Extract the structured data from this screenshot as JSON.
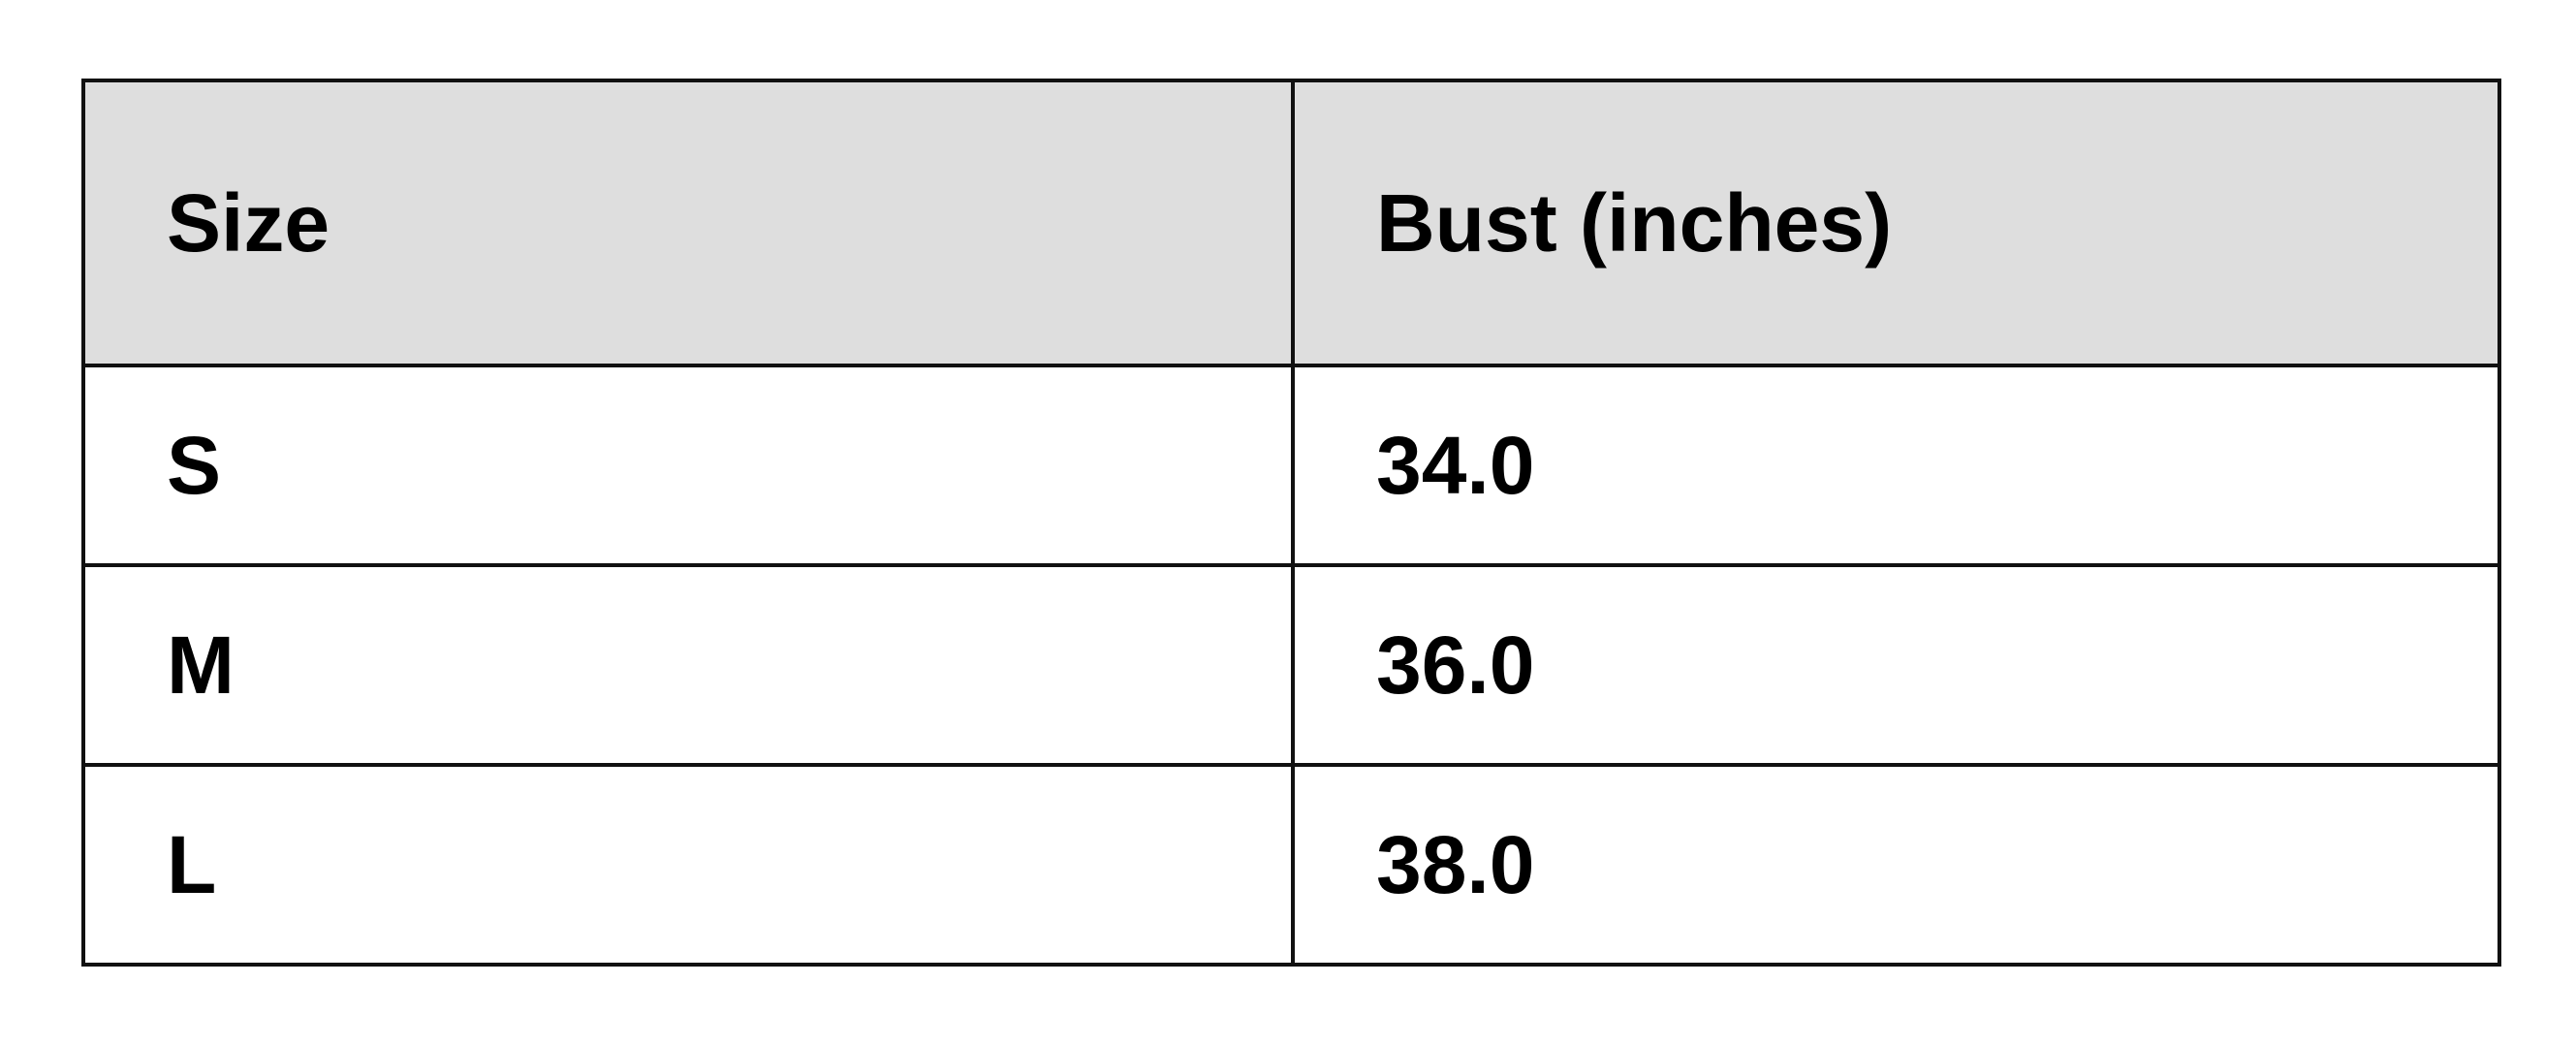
{
  "table": {
    "headers": [
      "Size",
      "Bust (inches)"
    ],
    "rows": [
      [
        "S",
        "34.0"
      ],
      [
        "M",
        "36.0"
      ],
      [
        "L",
        "38.0"
      ]
    ]
  }
}
